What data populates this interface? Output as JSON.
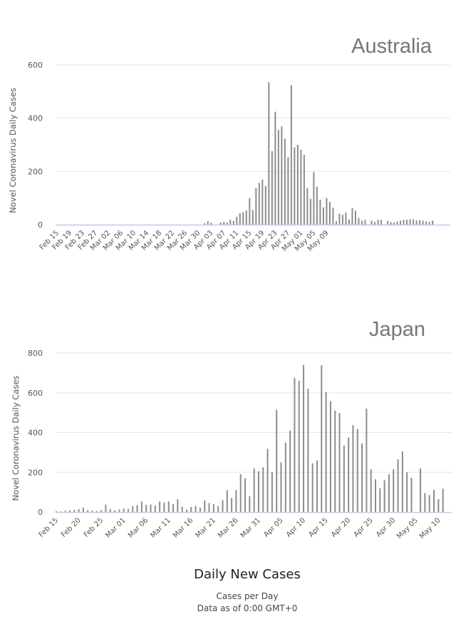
{
  "chart_data": [
    {
      "type": "bar",
      "title": "Australia",
      "ylabel": "Novel Coronavirus Daily Cases",
      "ylim": [
        0,
        600
      ],
      "yticks": [
        0,
        200,
        400,
        600
      ],
      "x_start": "Feb 15",
      "x_tick_labels": [
        "Feb 15",
        "Feb 19",
        "Feb 23",
        "Feb 27",
        "Mar 02",
        "Mar 06",
        "Mar 10",
        "Mar 14",
        "Mar 18",
        "Mar 22",
        "Mar 26",
        "Mar 30",
        "Apr 03",
        "Apr 07",
        "Apr 11",
        "Apr 15",
        "Apr 19",
        "Apr 23",
        "Apr 27",
        "May 01",
        "May 05",
        "May 09"
      ],
      "values": [
        0,
        0,
        0,
        0,
        0,
        0,
        0,
        0,
        0,
        0,
        0,
        0,
        0,
        0,
        0,
        0,
        0,
        0,
        0,
        0,
        0,
        0,
        0,
        0,
        0,
        0,
        0,
        0,
        0,
        0,
        0,
        0,
        0,
        0,
        0,
        0,
        0,
        0,
        0,
        0,
        0,
        0,
        0,
        0,
        0,
        0,
        5,
        13,
        7,
        0,
        0,
        8,
        10,
        8,
        18,
        14,
        30,
        43,
        47,
        53,
        100,
        55,
        137,
        157,
        169,
        145,
        535,
        276,
        424,
        356,
        369,
        323,
        254,
        524,
        290,
        300,
        281,
        262,
        138,
        97,
        197,
        143,
        94,
        65,
        100,
        85,
        64,
        13,
        41,
        37,
        45,
        19,
        62,
        53,
        25,
        15,
        18,
        0,
        15,
        10,
        18,
        18,
        0,
        14,
        10,
        8,
        12,
        15,
        18,
        18,
        20,
        20,
        16,
        17,
        15,
        12,
        10,
        15
      ]
    },
    {
      "type": "bar",
      "title": "Japan",
      "ylabel": "Novel Coronavirus Daily Cases",
      "ylim": [
        0,
        800
      ],
      "yticks": [
        0,
        200,
        400,
        600,
        800
      ],
      "x_start": "Feb 15",
      "x_tick_labels": [
        "Feb 15",
        "Feb 20",
        "Feb 25",
        "Mar 01",
        "Mar 06",
        "Mar 11",
        "Mar 16",
        "Mar 21",
        "Mar 26",
        "Mar 31",
        "Apr 05",
        "Apr 10",
        "Apr 15",
        "Apr 20",
        "Apr 25",
        "Apr 30",
        "May 05",
        "May 10"
      ],
      "values": [
        5,
        3,
        6,
        9,
        10,
        15,
        22,
        9,
        7,
        5,
        10,
        37,
        15,
        9,
        13,
        17,
        16,
        30,
        35,
        53,
        37,
        38,
        33,
        53,
        48,
        53,
        40,
        64,
        27,
        12,
        25,
        30,
        22,
        59,
        45,
        40,
        30,
        60,
        110,
        70,
        110,
        190,
        170,
        80,
        220,
        205,
        225,
        318,
        200,
        515,
        250,
        350,
        410,
        675,
        660,
        740,
        620,
        245,
        260,
        738,
        603,
        558,
        510,
        498,
        335,
        375,
        437,
        418,
        345,
        520,
        215,
        165,
        120,
        160,
        190,
        215,
        265,
        305,
        200,
        172,
        0,
        220,
        95,
        85,
        112,
        65,
        118
      ]
    }
  ],
  "footer": {
    "title": "Daily New Cases",
    "line1": "Cases per Day",
    "line2": "Data as of 0:00 GMT+0"
  }
}
